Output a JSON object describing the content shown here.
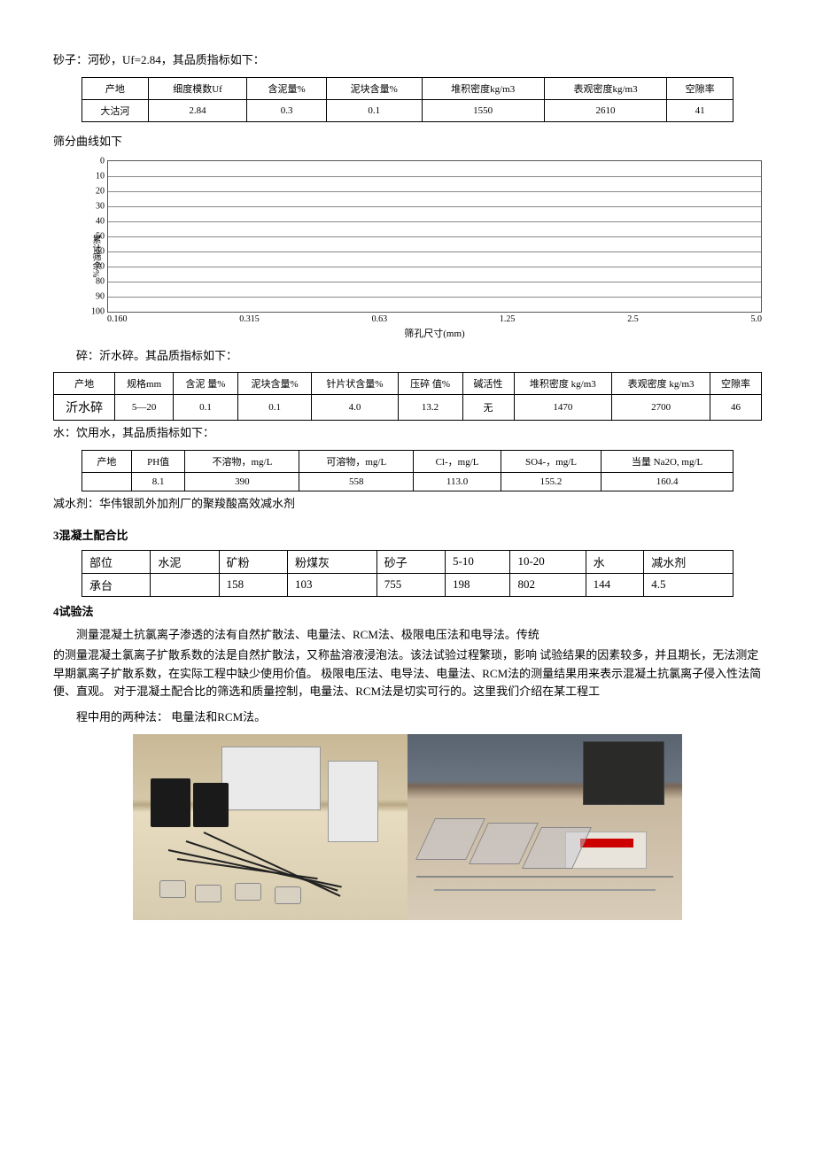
{
  "sand": {
    "intro": "砂子：河砂，Uf=2.84，其品质指标如下：",
    "headers": [
      "产地",
      "细度模数Uf",
      "含泥量%",
      "泥块含量%",
      "堆积密度kg/m3",
      "表观密度kg/m3",
      "空隙率"
    ],
    "row": [
      "大沽河",
      "2.84",
      "0.3",
      "0.1",
      "1550",
      "2610",
      "41"
    ]
  },
  "sieve": {
    "title": "筛分曲线如下",
    "ylabel": "累计筛余%",
    "yticks": [
      "0",
      "10",
      "20",
      "30",
      "40",
      "50",
      "60",
      "70",
      "80",
      "90",
      "100"
    ],
    "xticks": [
      "0.160",
      "0.315",
      "0.63",
      "1.25",
      "2.5",
      "5.0"
    ],
    "xlabel": "筛孔尺寸(mm)",
    "grid_color": "#888",
    "background": "#ffffff"
  },
  "stone": {
    "intro": "碎：沂水碎。其品质指标如下：",
    "headers": [
      "产地",
      "规格mm",
      "含泥 量%",
      "泥块含量%",
      "针片状含量%",
      "压碎 值%",
      "碱活性",
      "堆积密度 kg/m3",
      "表观密度 kg/m3",
      "空隙率"
    ],
    "row": [
      "沂水碎",
      "5—20",
      "0.1",
      "0.1",
      "4.0",
      "13.2",
      "无",
      "1470",
      "2700",
      "46"
    ]
  },
  "water": {
    "intro": "水：饮用水，其品质指标如下：",
    "headers": [
      "产地",
      "PH值",
      "不溶物，mg/L",
      "可溶物，mg/L",
      "Cl-，mg/L",
      "SO4-，mg/L",
      "当量 Na2O, mg/L"
    ],
    "row": [
      "",
      "8.1",
      "390",
      "558",
      "113.0",
      "155.2",
      "160.4"
    ]
  },
  "admixture": "减水剂：华伟银凯外加剂厂的聚羧酸高效减水剂",
  "mix": {
    "title": "3混凝土配合比",
    "headers": [
      "部位",
      "水泥",
      "矿粉",
      "粉煤灰",
      "砂子",
      "5-10",
      "10-20",
      "水",
      "减水剂"
    ],
    "row": [
      "承台",
      "",
      "158",
      "103",
      "755",
      "198",
      "802",
      "144",
      "4.5"
    ]
  },
  "method": {
    "title": "4试验法",
    "p1": "测量混凝土抗氯离子渗透的法有自然扩散法、电量法、RCM法、极限电压法和电导法。传统",
    "p2": "的测量混凝土氯离子扩散系数的法是自然扩散法，又称盐溶液浸泡法。该法试验过程繁琐，影响 试验结果的因素较多，并且期长，无法测定早期氯离子扩散系数，在实际工程中缺少使用价值。 极限电压法、电导法、电量法、RCM法的测量结果用来表示混凝土抗氯离子侵入性法简便、直观。 对于混凝土配合比的筛选和质量控制，电量法、RCM法是切实可行的。这里我们介绍在某工程工",
    "p3": "程中用的两种法：    电量法和RCM法。"
  }
}
